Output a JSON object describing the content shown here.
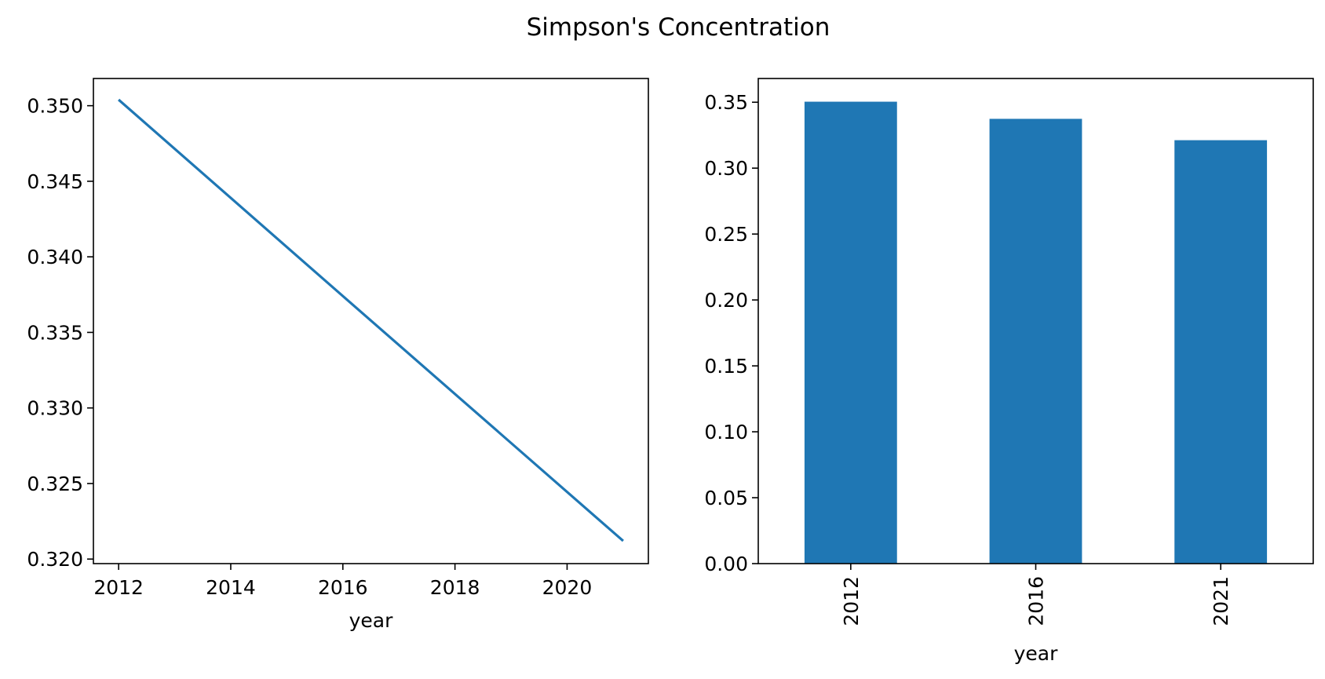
{
  "suptitle": "Simpson's Concentration",
  "colors": {
    "series": "#1f77b4",
    "axis": "#000000",
    "background": "#ffffff"
  },
  "chart_data": [
    {
      "type": "line",
      "x": [
        2012,
        2016,
        2021
      ],
      "series": [
        {
          "values": [
            0.3504,
            0.3374,
            0.3212
          ]
        }
      ],
      "xlabel": "year",
      "ylabel": "",
      "xlim": [
        2011.55,
        2021.45
      ],
      "ylim": [
        0.3197,
        0.3518
      ],
      "xticks": [
        2012,
        2014,
        2016,
        2018,
        2020
      ],
      "xtick_labels": [
        "2012",
        "2014",
        "2016",
        "2018",
        "2020"
      ],
      "yticks": [
        0.32,
        0.325,
        0.33,
        0.335,
        0.34,
        0.345,
        0.35
      ],
      "ytick_labels": [
        "0.320",
        "0.325",
        "0.330",
        "0.335",
        "0.340",
        "0.345",
        "0.350"
      ],
      "grid": false,
      "legend": "none"
    },
    {
      "type": "bar",
      "categories": [
        "2012",
        "2016",
        "2021"
      ],
      "values": [
        0.3504,
        0.3374,
        0.3212
      ],
      "xlabel": "year",
      "ylabel": "",
      "ylim": [
        0,
        0.368
      ],
      "yticks": [
        0,
        0.05,
        0.1,
        0.15,
        0.2,
        0.25,
        0.3,
        0.35
      ],
      "ytick_labels": [
        "0.00",
        "0.05",
        "0.10",
        "0.15",
        "0.20",
        "0.25",
        "0.30",
        "0.35"
      ],
      "xtick_rotation": "vertical",
      "grid": false,
      "legend": "none"
    }
  ]
}
